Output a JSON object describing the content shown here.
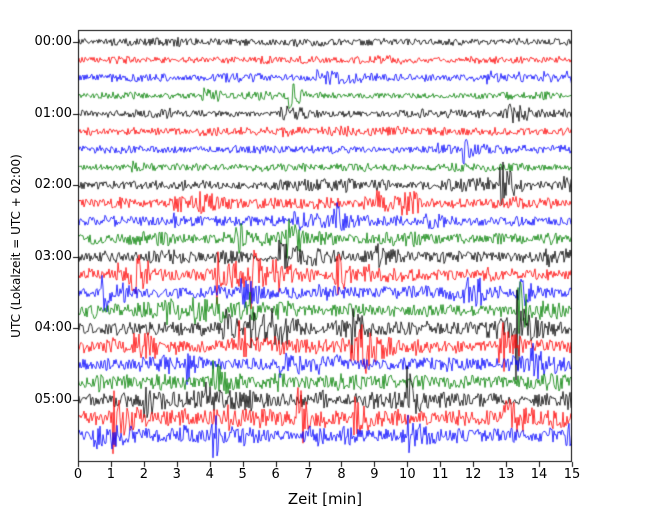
{
  "figure": {
    "background": "#ffffff"
  },
  "chart_data": {
    "type": "line",
    "kind": "seismogram-helicorder",
    "title": "",
    "xlabel": "Zeit  [min]",
    "ylabel": "UTC (Lokalzeit = UTC + 02:00)",
    "x_range": [
      0,
      15
    ],
    "x_ticks": [
      "0",
      "1",
      "2",
      "3",
      "4",
      "5",
      "6",
      "7",
      "8",
      "9",
      "10",
      "11",
      "12",
      "13",
      "14",
      "15"
    ],
    "y_hour_labels": [
      "00:00",
      "01:00",
      "02:00",
      "03:00",
      "04:00",
      "05:00"
    ],
    "trace_interval_minutes": 15,
    "color_cycle": [
      "#000000",
      "#ff0000",
      "#0000ff",
      "#008000"
    ],
    "traces": [
      {
        "start": "00:00",
        "color": "#000000",
        "amplitude": 4.5,
        "burstiness": 0.25
      },
      {
        "start": "00:15",
        "color": "#ff0000",
        "amplitude": 4.5,
        "burstiness": 0.2
      },
      {
        "start": "00:30",
        "color": "#0000ff",
        "amplitude": 5.0,
        "burstiness": 0.2
      },
      {
        "start": "00:45",
        "color": "#008000",
        "amplitude": 4.0,
        "burstiness": 0.2
      },
      {
        "start": "01:00",
        "color": "#000000",
        "amplitude": 4.5,
        "burstiness": 0.3
      },
      {
        "start": "01:15",
        "color": "#ff0000",
        "amplitude": 5.5,
        "burstiness": 0.3
      },
      {
        "start": "01:30",
        "color": "#0000ff",
        "amplitude": 5.0,
        "burstiness": 0.25
      },
      {
        "start": "01:45",
        "color": "#008000",
        "amplitude": 4.5,
        "burstiness": 0.3
      },
      {
        "start": "02:00",
        "color": "#000000",
        "amplitude": 6.0,
        "burstiness": 0.5
      },
      {
        "start": "02:15",
        "color": "#ff0000",
        "amplitude": 6.5,
        "burstiness": 0.4
      },
      {
        "start": "02:30",
        "color": "#0000ff",
        "amplitude": 6.5,
        "burstiness": 0.4
      },
      {
        "start": "02:45",
        "color": "#008000",
        "amplitude": 7.0,
        "burstiness": 0.6
      },
      {
        "start": "03:00",
        "color": "#000000",
        "amplitude": 7.5,
        "burstiness": 0.8
      },
      {
        "start": "03:15",
        "color": "#ff0000",
        "amplitude": 8.0,
        "burstiness": 0.9
      },
      {
        "start": "03:30",
        "color": "#0000ff",
        "amplitude": 7.5,
        "burstiness": 0.8
      },
      {
        "start": "03:45",
        "color": "#008000",
        "amplitude": 8.0,
        "burstiness": 0.9
      },
      {
        "start": "04:00",
        "color": "#000000",
        "amplitude": 9.0,
        "burstiness": 1.0
      },
      {
        "start": "04:15",
        "color": "#ff0000",
        "amplitude": 9.0,
        "burstiness": 1.0
      },
      {
        "start": "04:30",
        "color": "#0000ff",
        "amplitude": 8.5,
        "burstiness": 0.9
      },
      {
        "start": "04:45",
        "color": "#008000",
        "amplitude": 8.5,
        "burstiness": 0.9
      },
      {
        "start": "05:00",
        "color": "#000000",
        "amplitude": 9.0,
        "burstiness": 1.0
      },
      {
        "start": "05:15",
        "color": "#ff0000",
        "amplitude": 10.0,
        "burstiness": 1.1
      },
      {
        "start": "05:30",
        "color": "#0000ff",
        "amplitude": 10.0,
        "burstiness": 1.1
      }
    ]
  }
}
